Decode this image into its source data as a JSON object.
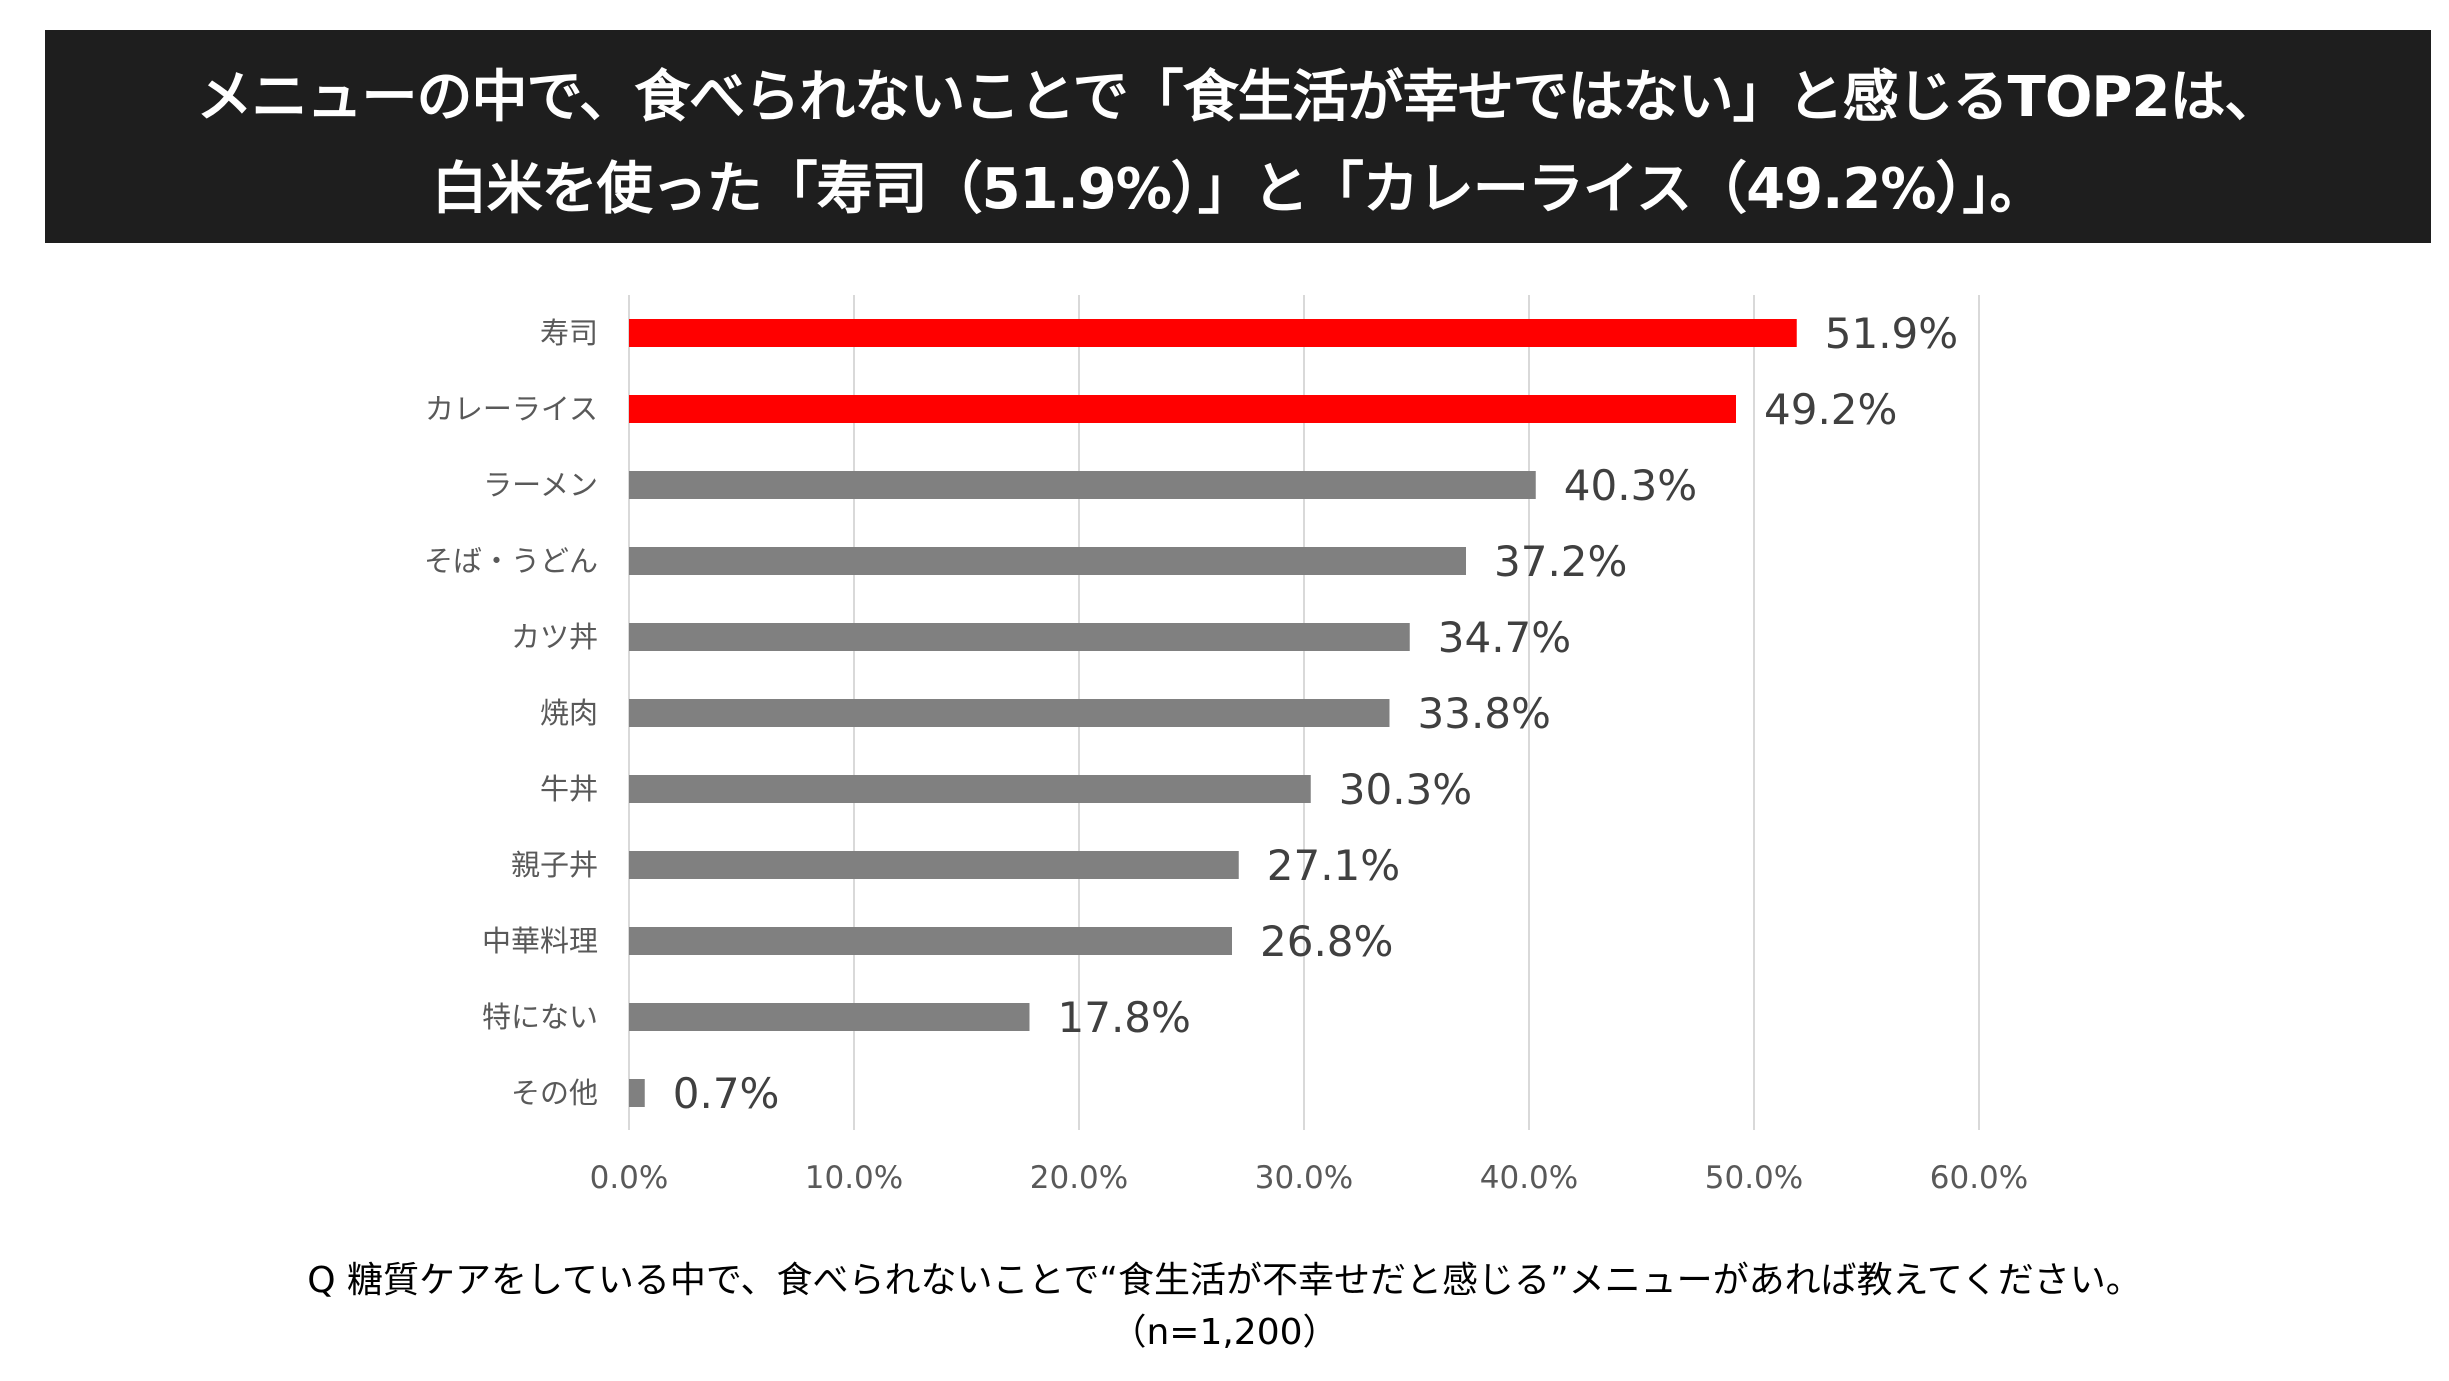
{
  "header": {
    "line1": "メニューの中で、食べられないことで「食生活が幸せではない」と感じるTOP2は、",
    "line2": "白米を使った「寿司（51.9%）」と「カレーライス（49.2%）」。",
    "background": "#1e1e1e",
    "text_color": "#ffffff"
  },
  "chart_data": {
    "type": "bar",
    "orientation": "horizontal",
    "title": "",
    "categories": [
      "寿司",
      "カレーライス",
      "ラーメン",
      "そば・うどん",
      "カツ丼",
      "焼肉",
      "牛丼",
      "親子丼",
      "中華料理",
      "特にない",
      "その他"
    ],
    "values": [
      51.9,
      49.2,
      40.3,
      37.2,
      34.7,
      33.8,
      30.3,
      27.1,
      26.8,
      17.8,
      0.7
    ],
    "value_labels": [
      "51.9%",
      "49.2%",
      "40.3%",
      "37.2%",
      "34.7%",
      "33.8%",
      "30.3%",
      "27.1%",
      "26.8%",
      "17.8%",
      "0.7%"
    ],
    "bar_colors": [
      "#ff0000",
      "#ff0000",
      "#808080",
      "#808080",
      "#808080",
      "#808080",
      "#808080",
      "#808080",
      "#808080",
      "#808080",
      "#808080"
    ],
    "xlim": [
      0,
      60
    ],
    "x_ticks": [
      0,
      10,
      20,
      30,
      40,
      50,
      60
    ],
    "x_tick_labels": [
      "0.0%",
      "10.0%",
      "20.0%",
      "30.0%",
      "40.0%",
      "50.0%",
      "60.0%"
    ],
    "xlabel": "",
    "ylabel": "",
    "grid": true,
    "legend": "none"
  },
  "footer": {
    "question": "Q 糖質ケアをしている中で、食べられないことで“食生活が不幸せだと感じる”メニューがあれば教えてください。",
    "sample": "（n=1,200）"
  }
}
